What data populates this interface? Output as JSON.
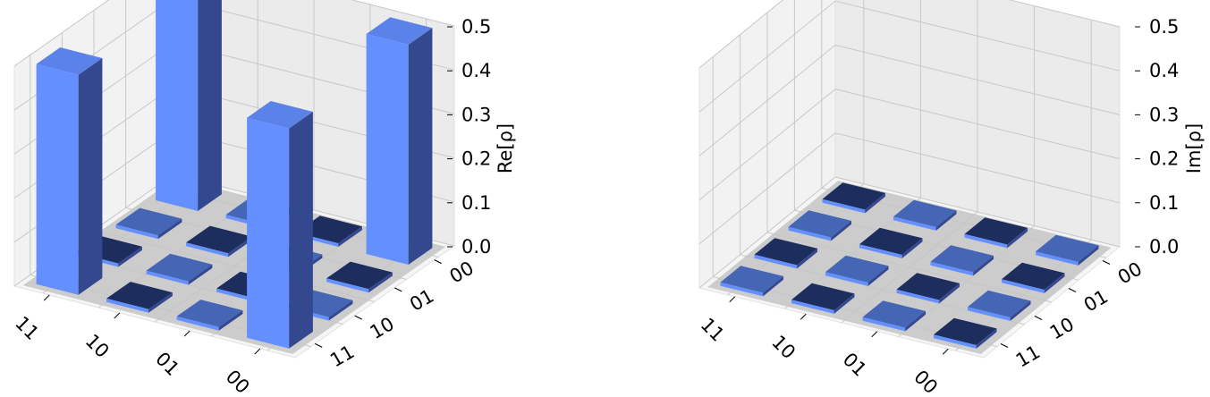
{
  "chart_data": [
    {
      "type": "bar3d",
      "zlabel": "Re[ρ]",
      "zlim": [
        0,
        0.5
      ],
      "zticks": [
        "0.0",
        "0.1",
        "0.2",
        "0.3",
        "0.4",
        "0.5"
      ],
      "row_labels": [
        "00",
        "01",
        "10",
        "11"
      ],
      "col_labels": [
        "00",
        "01",
        "10",
        "11"
      ],
      "values": [
        [
          0.5,
          0,
          0,
          0.5
        ],
        [
          0,
          0,
          0,
          0
        ],
        [
          0,
          0,
          0,
          0
        ],
        [
          0.5,
          0,
          0,
          0.5
        ]
      ],
      "grid": true,
      "colors": {
        "positive": "#648FFF",
        "negative": "#1D2D5E"
      }
    },
    {
      "type": "bar3d",
      "zlabel": "Im[ρ]",
      "zlim": [
        0,
        0.5
      ],
      "zticks": [
        "0.0",
        "0.1",
        "0.2",
        "0.3",
        "0.4",
        "0.5"
      ],
      "row_labels": [
        "00",
        "01",
        "10",
        "11"
      ],
      "col_labels": [
        "00",
        "01",
        "10",
        "11"
      ],
      "values": [
        [
          0,
          0,
          0,
          0
        ],
        [
          0,
          0,
          0,
          0
        ],
        [
          0,
          0,
          0,
          0
        ],
        [
          0,
          0,
          0,
          0
        ]
      ],
      "grid": true,
      "colors": {
        "positive": "#648FFF",
        "negative": "#1D2D5E"
      }
    }
  ]
}
